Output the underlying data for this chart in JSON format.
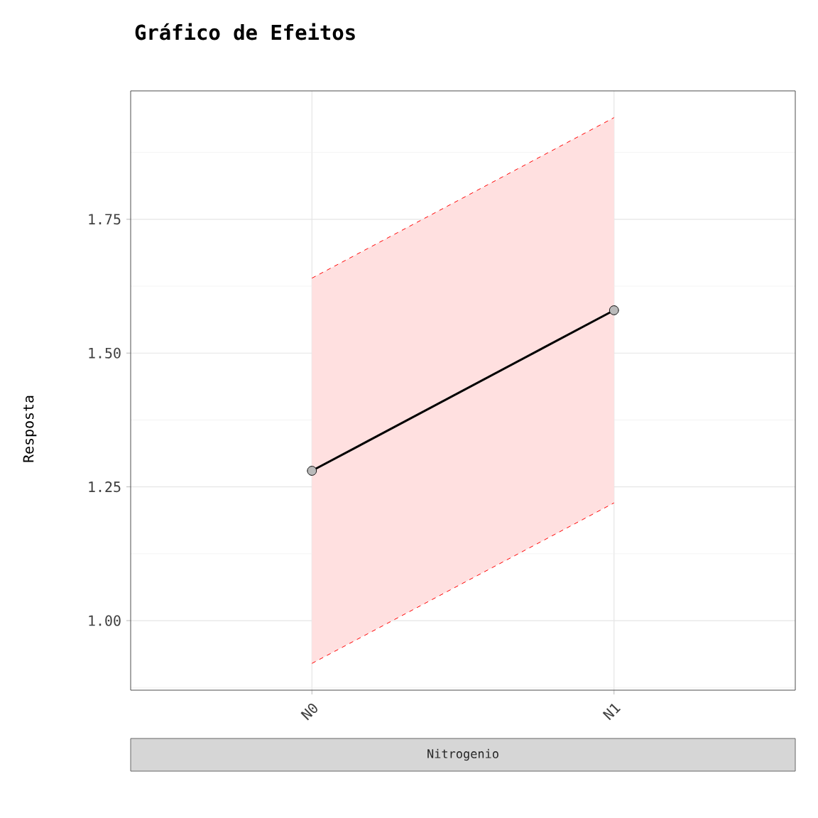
{
  "chart_data": {
    "type": "line",
    "title": "Gráfico de Efeitos",
    "xlabel": "Nitrogenio",
    "ylabel": "Resposta",
    "categories": [
      "N0",
      "N1"
    ],
    "series": [
      {
        "color": "#000000",
        "values": [
          1.28,
          1.58
        ],
        "lower": [
          0.92,
          1.22
        ],
        "upper": [
          1.64,
          1.94
        ]
      },
      {
        "type": "line",
        "color": "#ff0000",
        "line_style": "dashed",
        "marker": "none",
        "values": [
          1.64,
          1.94
        ]
      },
      {
        "type": "line",
        "color": "#ff0000",
        "line_style": "dashed",
        "marker": "none",
        "values": [
          0.92,
          1.22
        ]
      }
    ],
    "ylim": [
      0.87,
      1.99
    ],
    "yticks": [
      {
        "value": 0.875,
        "label": null
      },
      {
        "value": 1.0,
        "label": "1.00"
      },
      {
        "value": 1.125,
        "label": null
      },
      1.25,
      {
        "value": 1.375,
        "label": null
      },
      {
        "value": 1.5,
        "label": "1.50"
      },
      {
        "value": 1.625,
        "label": null
      },
      1.75,
      {
        "value": 1.875,
        "label": null
      }
    ],
    "grid": true,
    "marker": "circle",
    "line_style": "solid"
  }
}
